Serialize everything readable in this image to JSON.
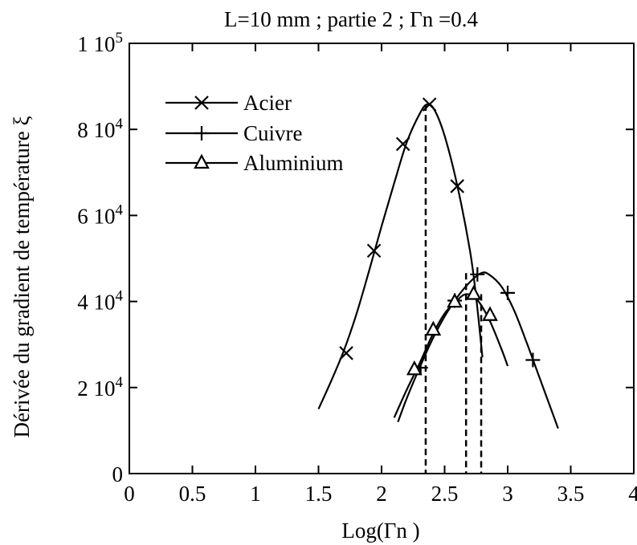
{
  "chart_data": {
    "type": "line",
    "title": "L=10 mm  ;  partie 2  ;  Γn =0.4",
    "xlabel": "Log(Γn )",
    "ylabel": "Dérivée du gradient de température ξ",
    "xlim": [
      0,
      4
    ],
    "ylim": [
      0,
      100000
    ],
    "xticks": [
      0,
      0.5,
      1,
      1.5,
      2,
      2.5,
      3,
      3.5,
      4
    ],
    "xtick_labels": [
      "0",
      "0.5",
      "1",
      "1.5",
      "2",
      "2.5",
      "3",
      "3.5",
      "4"
    ],
    "yticks": [
      0,
      20000,
      40000,
      60000,
      80000,
      100000
    ],
    "ytick_labels": [
      {
        "mantissa": "0",
        "exp": ""
      },
      {
        "mantissa": "2 10",
        "exp": "4"
      },
      {
        "mantissa": "4 10",
        "exp": "4"
      },
      {
        "mantissa": "6 10",
        "exp": "4"
      },
      {
        "mantissa": "8 10",
        "exp": "4"
      },
      {
        "mantissa": "1 10",
        "exp": "5"
      }
    ],
    "grid": false,
    "legend_position": "top-left",
    "series": [
      {
        "name": "Acier",
        "marker": "x",
        "curve": [
          [
            1.5,
            15000
          ],
          [
            1.6,
            21500
          ],
          [
            1.7,
            28500
          ],
          [
            1.8,
            37000
          ],
          [
            1.9,
            47000
          ],
          [
            2.0,
            57500
          ],
          [
            2.1,
            67500
          ],
          [
            2.2,
            77000
          ],
          [
            2.3,
            83500
          ],
          [
            2.36,
            85800
          ],
          [
            2.42,
            84500
          ],
          [
            2.5,
            78500
          ],
          [
            2.6,
            67000
          ],
          [
            2.7,
            52000
          ],
          [
            2.75,
            41000
          ],
          [
            2.8,
            27000
          ]
        ],
        "markers": [
          [
            1.72,
            28000
          ],
          [
            1.94,
            51800
          ],
          [
            2.17,
            76600
          ],
          [
            2.38,
            85800
          ],
          [
            2.6,
            66800
          ]
        ]
      },
      {
        "name": "Cuivre",
        "marker": "plus",
        "curve": [
          [
            2.13,
            12000
          ],
          [
            2.2,
            17500
          ],
          [
            2.3,
            24500
          ],
          [
            2.4,
            31000
          ],
          [
            2.5,
            36500
          ],
          [
            2.6,
            41000
          ],
          [
            2.7,
            44500
          ],
          [
            2.79,
            46600
          ],
          [
            2.85,
            46300
          ],
          [
            2.95,
            43500
          ],
          [
            3.05,
            38000
          ],
          [
            3.15,
            30500
          ],
          [
            3.25,
            22500
          ],
          [
            3.35,
            14500
          ],
          [
            3.4,
            10500
          ]
        ],
        "markers": [
          [
            2.31,
            24600
          ],
          [
            2.58,
            40200
          ],
          [
            2.76,
            46300
          ],
          [
            3.0,
            42000
          ],
          [
            3.2,
            26400
          ]
        ]
      },
      {
        "name": "Aluminium",
        "marker": "triangle",
        "curve": [
          [
            2.1,
            13000
          ],
          [
            2.2,
            19500
          ],
          [
            2.3,
            25500
          ],
          [
            2.4,
            32000
          ],
          [
            2.5,
            37200
          ],
          [
            2.6,
            40300
          ],
          [
            2.67,
            41700
          ],
          [
            2.75,
            40700
          ],
          [
            2.85,
            36000
          ],
          [
            2.95,
            29000
          ],
          [
            3.0,
            25000
          ]
        ],
        "markers": [
          [
            2.26,
            24200
          ],
          [
            2.41,
            33400
          ],
          [
            2.58,
            39900
          ],
          [
            2.73,
            41700
          ],
          [
            2.86,
            36800
          ]
        ]
      }
    ],
    "vertical_dashed_lines_x": [
      2.35,
      2.67,
      2.79
    ]
  }
}
